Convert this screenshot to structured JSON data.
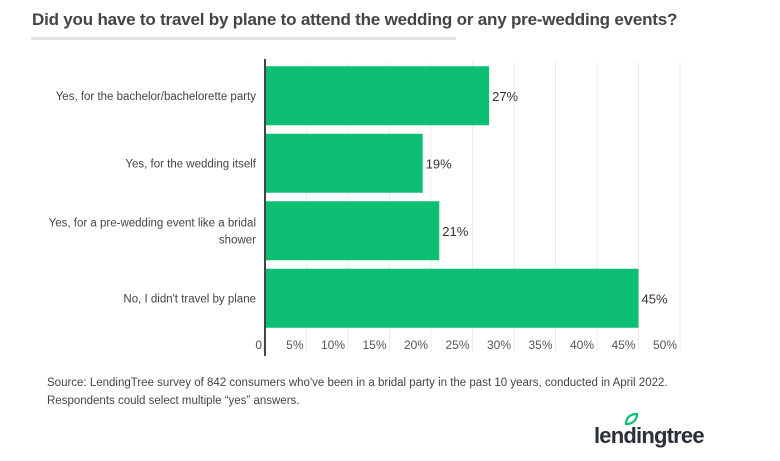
{
  "title": "Did you have to travel by plane to attend the wedding or any pre-wedding events?",
  "chart_data": {
    "type": "bar",
    "orientation": "horizontal",
    "title": "Did you have to travel by plane to attend the wedding or any pre-wedding events?",
    "categories": [
      [
        "Yes, for the bachelor/bachelorette party"
      ],
      [
        "Yes, for the wedding itself"
      ],
      [
        "Yes, for a pre-wedding event like a bridal",
        "shower"
      ],
      [
        "No, I didn't travel by plane"
      ]
    ],
    "values": [
      27,
      19,
      21,
      45
    ],
    "data_labels": [
      "27%",
      "19%",
      "21%",
      "45%"
    ],
    "xlim": [
      0,
      50
    ],
    "x_ticks": [
      "0",
      "5%",
      "10%",
      "15%",
      "20%",
      "25%",
      "30%",
      "35%",
      "40%",
      "45%",
      "50%"
    ],
    "grid": true,
    "bar_color": "#0cbf73"
  },
  "source": {
    "line1": "Source: LendingTree survey of 842 consumers who've been in a bridal party in the past 10 years, conducted in April 2022.",
    "line2": "Respondents could select multiple “yes” answers."
  },
  "logo": "lendingtree",
  "colors": {
    "accent": "#0cbf73",
    "text": "#333333"
  }
}
